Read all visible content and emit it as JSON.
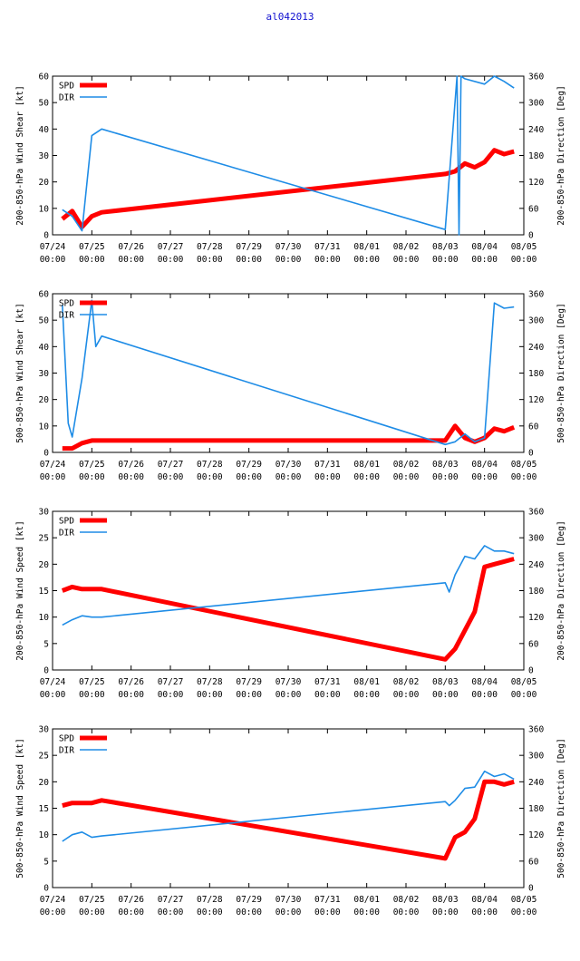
{
  "title": "al042013",
  "colors": {
    "spd": "#ff0000",
    "dir": "#1e8ce6",
    "axis": "#000000",
    "title": "#1010d0"
  },
  "chart_data": [
    {
      "type": "line",
      "ylabel_left": "200-850-hPa Wind Shear [kt]",
      "ylabel_right": "200-850-hPa Direction [Deg]",
      "ylim_left": [
        0,
        60
      ],
      "yticks_left": [
        "0",
        "10",
        "20",
        "30",
        "40",
        "50",
        "60"
      ],
      "ylim_right": [
        0,
        360
      ],
      "yticks_right": [
        "0",
        "60",
        "120",
        "180",
        "240",
        "300",
        "360"
      ],
      "xlim": [
        0,
        12
      ],
      "xticks": [
        {
          "date": "07/24",
          "time": "00:00"
        },
        {
          "date": "07/25",
          "time": "00:00"
        },
        {
          "date": "07/26",
          "time": "00:00"
        },
        {
          "date": "07/27",
          "time": "00:00"
        },
        {
          "date": "07/28",
          "time": "00:00"
        },
        {
          "date": "07/29",
          "time": "00:00"
        },
        {
          "date": "07/30",
          "time": "00:00"
        },
        {
          "date": "07/31",
          "time": "00:00"
        },
        {
          "date": "08/01",
          "time": "00:00"
        },
        {
          "date": "08/02",
          "time": "00:00"
        },
        {
          "date": "08/03",
          "time": "00:00"
        },
        {
          "date": "08/04",
          "time": "00:00"
        },
        {
          "date": "08/05",
          "time": "00:00"
        }
      ],
      "legend": [
        {
          "key": "spd",
          "label": "SPD"
        },
        {
          "key": "dir",
          "label": "DIR"
        }
      ],
      "series": [
        {
          "name": "SPD",
          "axis": "left",
          "x": [
            0.25,
            0.5,
            0.75,
            1.0,
            1.25,
            10.0,
            10.25,
            10.5,
            10.75,
            11.0,
            11.25,
            11.5,
            11.75
          ],
          "y": [
            6,
            9,
            3,
            7,
            8.5,
            23,
            24,
            27,
            25.5,
            27.5,
            32,
            30.5,
            31.5
          ]
        },
        {
          "name": "DIR",
          "axis": "right",
          "x": [
            0.25,
            0.5,
            0.75,
            1.0,
            1.25,
            10.0,
            10.3,
            10.35,
            10.4,
            10.5,
            11.0,
            11.25,
            11.5,
            11.75
          ],
          "y": [
            57,
            42,
            9,
            225,
            240,
            12,
            360,
            0,
            360,
            354,
            342,
            360,
            348,
            333
          ]
        }
      ]
    },
    {
      "type": "line",
      "ylabel_left": "500-850-hPa Wind Shear [kt]",
      "ylabel_right": "500-850-hPa Direction [Deg]",
      "ylim_left": [
        0,
        60
      ],
      "yticks_left": [
        "0",
        "10",
        "20",
        "30",
        "40",
        "50",
        "60"
      ],
      "ylim_right": [
        0,
        360
      ],
      "yticks_right": [
        "0",
        "60",
        "120",
        "180",
        "240",
        "300",
        "360"
      ],
      "xlim": [
        0,
        12
      ],
      "xticks": [
        {
          "date": "07/24",
          "time": "00:00"
        },
        {
          "date": "07/25",
          "time": "00:00"
        },
        {
          "date": "07/26",
          "time": "00:00"
        },
        {
          "date": "07/27",
          "time": "00:00"
        },
        {
          "date": "07/28",
          "time": "00:00"
        },
        {
          "date": "07/29",
          "time": "00:00"
        },
        {
          "date": "07/30",
          "time": "00:00"
        },
        {
          "date": "07/31",
          "time": "00:00"
        },
        {
          "date": "08/01",
          "time": "00:00"
        },
        {
          "date": "08/02",
          "time": "00:00"
        },
        {
          "date": "08/03",
          "time": "00:00"
        },
        {
          "date": "08/04",
          "time": "00:00"
        },
        {
          "date": "08/05",
          "time": "00:00"
        }
      ],
      "legend": [
        {
          "key": "spd",
          "label": "SPD"
        },
        {
          "key": "dir",
          "label": "DIR"
        }
      ],
      "series": [
        {
          "name": "SPD",
          "axis": "left",
          "x": [
            0.25,
            0.5,
            0.75,
            1.0,
            1.25,
            10.0,
            10.25,
            10.5,
            10.75,
            11.0,
            11.25,
            11.5,
            11.75
          ],
          "y": [
            1.5,
            1.5,
            3.5,
            4.5,
            4.5,
            4.5,
            10,
            5.5,
            4,
            5.5,
            9,
            8,
            9.5
          ]
        },
        {
          "name": "DIR",
          "axis": "right",
          "x": [
            0.25,
            0.4,
            0.5,
            0.75,
            1.0,
            1.1,
            1.25,
            10.0,
            10.25,
            10.5,
            10.75,
            11.0,
            11.25,
            11.5,
            11.75
          ],
          "y": [
            335,
            66,
            35,
            168,
            345,
            240,
            264,
            18,
            24,
            42,
            24,
            33,
            339,
            327,
            330
          ]
        }
      ]
    },
    {
      "type": "line",
      "ylabel_left": "200-850-hPa Wind Speed [kt]",
      "ylabel_right": "200-850-hPa Direction [Deg]",
      "ylim_left": [
        0,
        30
      ],
      "yticks_left": [
        "0",
        "5",
        "10",
        "15",
        "20",
        "25",
        "30"
      ],
      "ylim_right": [
        0,
        360
      ],
      "yticks_right": [
        "0",
        "60",
        "120",
        "180",
        "240",
        "300",
        "360"
      ],
      "xlim": [
        0,
        12
      ],
      "xticks": [
        {
          "date": "07/24",
          "time": "00:00"
        },
        {
          "date": "07/25",
          "time": "00:00"
        },
        {
          "date": "07/26",
          "time": "00:00"
        },
        {
          "date": "07/27",
          "time": "00:00"
        },
        {
          "date": "07/28",
          "time": "00:00"
        },
        {
          "date": "07/29",
          "time": "00:00"
        },
        {
          "date": "07/30",
          "time": "00:00"
        },
        {
          "date": "07/31",
          "time": "00:00"
        },
        {
          "date": "08/01",
          "time": "00:00"
        },
        {
          "date": "08/02",
          "time": "00:00"
        },
        {
          "date": "08/03",
          "time": "00:00"
        },
        {
          "date": "08/04",
          "time": "00:00"
        },
        {
          "date": "08/05",
          "time": "00:00"
        }
      ],
      "legend": [
        {
          "key": "spd",
          "label": "SPD"
        },
        {
          "key": "dir",
          "label": "DIR"
        }
      ],
      "series": [
        {
          "name": "SPD",
          "axis": "left",
          "x": [
            0.25,
            0.5,
            0.75,
            1.0,
            1.25,
            10.0,
            10.25,
            10.5,
            10.75,
            11.0,
            11.25,
            11.5,
            11.75
          ],
          "y": [
            15,
            15.7,
            15.3,
            15.3,
            15.3,
            2,
            4,
            7.5,
            11,
            19.5,
            20,
            20.5,
            21
          ]
        },
        {
          "name": "DIR",
          "axis": "right",
          "x": [
            0.25,
            0.5,
            0.75,
            1.0,
            1.25,
            10.0,
            10.1,
            10.25,
            10.5,
            10.75,
            11.0,
            11.25,
            11.5,
            11.75
          ],
          "y": [
            102,
            114,
            123,
            120,
            120,
            198,
            177,
            216,
            258,
            252,
            282,
            270,
            270,
            264
          ]
        }
      ]
    },
    {
      "type": "line",
      "ylabel_left": "500-850-hPa Wind Speed [kt]",
      "ylabel_right": "500-850-hPa Direction [Deg]",
      "ylim_left": [
        0,
        30
      ],
      "yticks_left": [
        "0",
        "5",
        "10",
        "15",
        "20",
        "25",
        "30"
      ],
      "ylim_right": [
        0,
        360
      ],
      "yticks_right": [
        "0",
        "60",
        "120",
        "180",
        "240",
        "300",
        "360"
      ],
      "xlim": [
        0,
        12
      ],
      "xticks": [
        {
          "date": "07/24",
          "time": "00:00"
        },
        {
          "date": "07/25",
          "time": "00:00"
        },
        {
          "date": "07/26",
          "time": "00:00"
        },
        {
          "date": "07/27",
          "time": "00:00"
        },
        {
          "date": "07/28",
          "time": "00:00"
        },
        {
          "date": "07/29",
          "time": "00:00"
        },
        {
          "date": "07/30",
          "time": "00:00"
        },
        {
          "date": "07/31",
          "time": "00:00"
        },
        {
          "date": "08/01",
          "time": "00:00"
        },
        {
          "date": "08/02",
          "time": "00:00"
        },
        {
          "date": "08/03",
          "time": "00:00"
        },
        {
          "date": "08/04",
          "time": "00:00"
        },
        {
          "date": "08/05",
          "time": "00:00"
        }
      ],
      "legend": [
        {
          "key": "spd",
          "label": "SPD"
        },
        {
          "key": "dir",
          "label": "DIR"
        }
      ],
      "series": [
        {
          "name": "SPD",
          "axis": "left",
          "x": [
            0.25,
            0.5,
            0.75,
            1.0,
            1.25,
            10.0,
            10.25,
            10.5,
            10.75,
            11.0,
            11.25,
            11.5,
            11.75
          ],
          "y": [
            15.5,
            16,
            16,
            16,
            16.5,
            5.5,
            9.5,
            10.5,
            13,
            20,
            20,
            19.5,
            20
          ]
        },
        {
          "name": "DIR",
          "axis": "right",
          "x": [
            0.25,
            0.5,
            0.75,
            1.0,
            1.25,
            10.0,
            10.1,
            10.25,
            10.5,
            10.75,
            11.0,
            11.25,
            11.5,
            11.75
          ],
          "y": [
            105,
            120,
            126,
            114,
            117,
            195,
            186,
            198,
            225,
            228,
            264,
            252,
            258,
            246
          ]
        }
      ]
    }
  ]
}
